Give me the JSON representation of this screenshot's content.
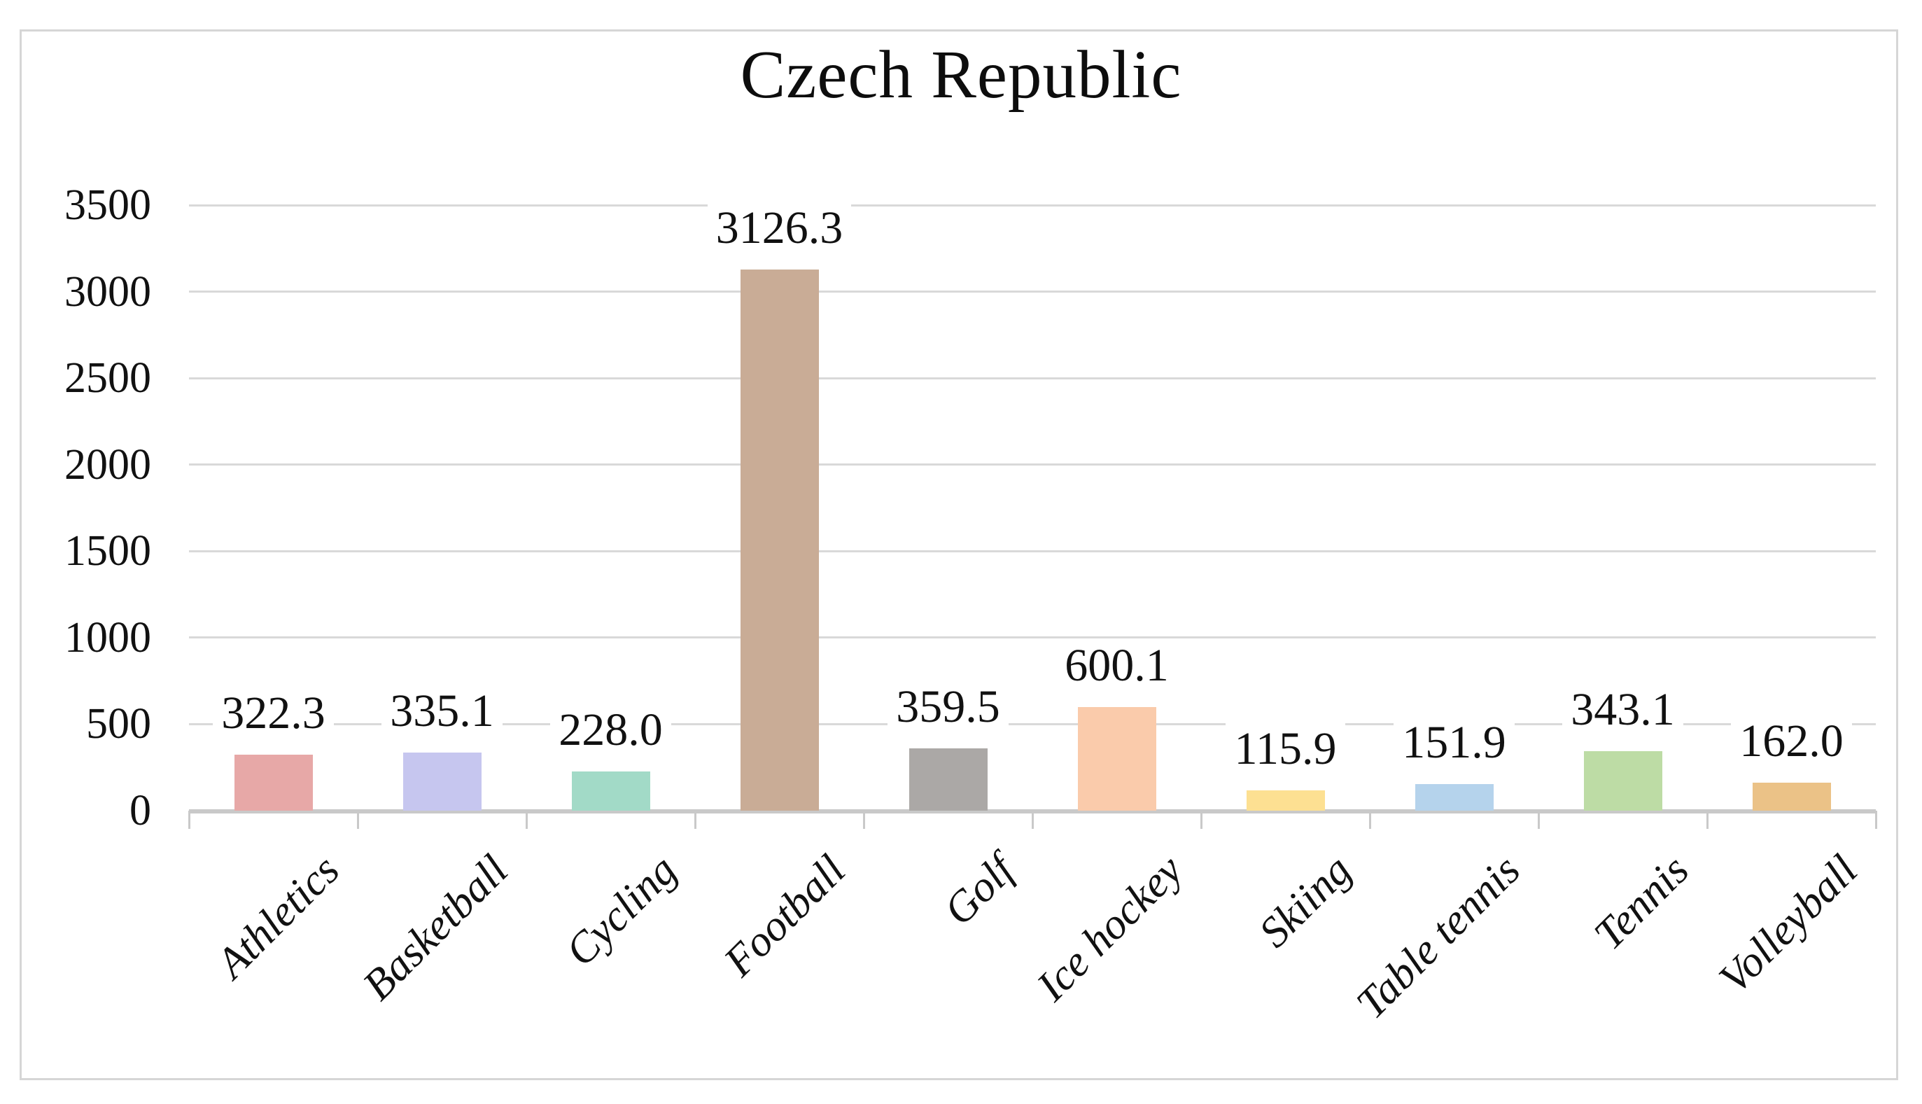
{
  "chart_data": {
    "type": "bar",
    "title": "Czech Republic",
    "categories": [
      "Athletics",
      "Basketball",
      "Cycling",
      "Football",
      "Golf",
      "Ice hockey",
      "Skiing",
      "Table tennis",
      "Tennis",
      "Volleyball"
    ],
    "values": [
      322.3,
      335.1,
      228.0,
      3126.3,
      359.5,
      600.1,
      115.9,
      151.9,
      343.1,
      162.0
    ],
    "data_labels": [
      "322.3",
      "335.1",
      "228.0",
      "3126.3",
      "359.5",
      "600.1",
      "115.9",
      "151.9",
      "343.1",
      "162.0"
    ],
    "bar_colors": [
      "#e7a8a7",
      "#c6c6ef",
      "#a2dac7",
      "#c9ac96",
      "#aba8a6",
      "#facbab",
      "#fde092",
      "#b5d3ec",
      "#bddca5",
      "#ebc287"
    ],
    "xlabel": "",
    "ylabel": "",
    "ylim": [
      0,
      3500
    ],
    "yticks": [
      0,
      500,
      1000,
      1500,
      2000,
      2500,
      3000,
      3500
    ],
    "grid": "horizontal",
    "gridline_color": "#d9d9d9",
    "axis_line_color": "#c9c9c9",
    "category_label_rotation_deg": -45,
    "legend": "none"
  }
}
